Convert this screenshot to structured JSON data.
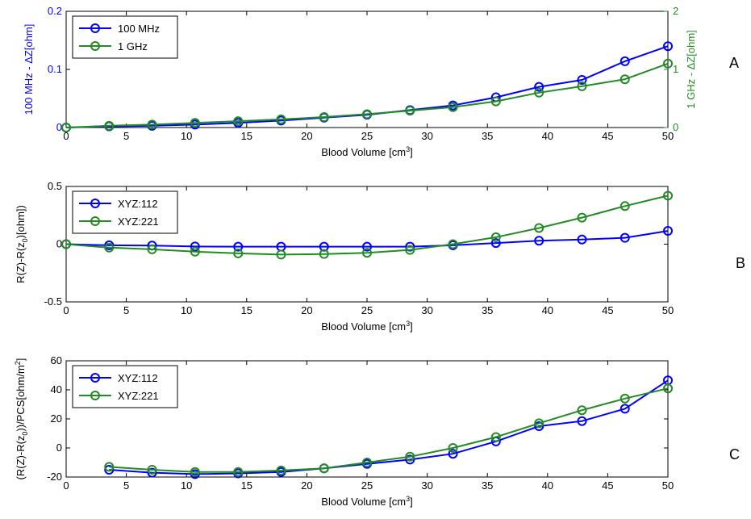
{
  "colors": {
    "blue": "#0000ff",
    "green": "#228B22",
    "axis": "#000000"
  },
  "chart_data": [
    {
      "type": "line",
      "panel_label": "A",
      "xlabel": "Blood Volume [cm",
      "xlabel_sup": "3",
      "xlabel_end": "]",
      "xlim": [
        0,
        50
      ],
      "xticks": [
        0,
        5,
        10,
        15,
        20,
        25,
        30,
        35,
        40,
        45,
        50
      ],
      "ylim": [
        0,
        0.2
      ],
      "yticks": [
        0,
        0.1,
        0.2
      ],
      "ytick_labels": [
        "0",
        "0.1",
        "0.2"
      ],
      "ylabel": "100 MHz - ΔZ[ohm]",
      "y2lim": [
        0,
        2
      ],
      "y2ticks": [
        0,
        1,
        2
      ],
      "y2tick_labels": [
        "0",
        "1",
        "2"
      ],
      "y2label": "1 GHz - ΔZ[ohm]",
      "legend_position": "top-left",
      "series": [
        {
          "name": "100 MHz",
          "color": "blue",
          "axis": "left",
          "x": [
            0,
            3.57,
            7.14,
            10.71,
            14.29,
            17.86,
            21.43,
            25,
            28.57,
            32.14,
            35.71,
            39.29,
            42.86,
            46.43,
            50
          ],
          "y": [
            0,
            0.002,
            0.003,
            0.005,
            0.008,
            0.012,
            0.017,
            0.022,
            0.03,
            0.038,
            0.052,
            0.07,
            0.082,
            0.114,
            0.14
          ]
        },
        {
          "name": "1 GHz",
          "color": "green",
          "axis": "right",
          "x": [
            0,
            3.57,
            7.14,
            10.71,
            14.29,
            17.86,
            21.43,
            25,
            28.57,
            32.14,
            35.71,
            39.29,
            42.86,
            46.43,
            50
          ],
          "y": [
            0,
            0.03,
            0.05,
            0.08,
            0.11,
            0.14,
            0.18,
            0.23,
            0.29,
            0.35,
            0.45,
            0.6,
            0.71,
            0.83,
            1.1
          ]
        }
      ]
    },
    {
      "type": "line",
      "panel_label": "B",
      "xlabel": "Blood Volume [cm",
      "xlabel_sup": "3",
      "xlabel_end": "]",
      "xlim": [
        0,
        50
      ],
      "xticks": [
        0,
        5,
        10,
        15,
        20,
        25,
        30,
        35,
        40,
        45,
        50
      ],
      "ylim": [
        -0.5,
        0.5
      ],
      "yticks": [
        -0.5,
        0,
        0.5
      ],
      "ytick_labels": [
        "-0.5",
        "0",
        "0.5"
      ],
      "ylabel": "R(Z)-R(z",
      "ylabel_sub": "0",
      "ylabel_end": ")[ohm])",
      "legend_position": "top-left",
      "series": [
        {
          "name": "XYZ:112",
          "color": "blue",
          "x": [
            0,
            3.57,
            7.14,
            10.71,
            14.29,
            17.86,
            21.43,
            25,
            28.57,
            32.14,
            35.71,
            39.29,
            42.86,
            46.43,
            50
          ],
          "y": [
            0,
            -0.01,
            -0.012,
            -0.02,
            -0.022,
            -0.022,
            -0.022,
            -0.022,
            -0.022,
            -0.01,
            0.01,
            0.03,
            0.04,
            0.055,
            0.115
          ]
        },
        {
          "name": "XYZ:221",
          "color": "green",
          "x": [
            0,
            3.57,
            7.14,
            10.71,
            14.29,
            17.86,
            21.43,
            25,
            28.57,
            32.14,
            35.71,
            39.29,
            42.86,
            46.43,
            50
          ],
          "y": [
            0,
            -0.03,
            -0.045,
            -0.065,
            -0.08,
            -0.09,
            -0.085,
            -0.075,
            -0.05,
            0,
            0.06,
            0.14,
            0.23,
            0.33,
            0.42
          ]
        }
      ]
    },
    {
      "type": "line",
      "panel_label": "C",
      "xlabel": "Blood Volume [cm",
      "xlabel_sup": "3",
      "xlabel_end": "]",
      "xlim": [
        0,
        50
      ],
      "xticks": [
        0,
        5,
        10,
        15,
        20,
        25,
        30,
        35,
        40,
        45,
        50
      ],
      "ylim": [
        -20,
        60
      ],
      "yticks": [
        -20,
        0,
        20,
        40,
        60
      ],
      "ytick_labels": [
        "-20",
        "0",
        "20",
        "40",
        "60"
      ],
      "ylabel": "(R(Z)-R(z",
      "ylabel_sub": "0",
      "ylabel_end": "))/PCS[ohm/m",
      "ylabel_sup": "2",
      "ylabel_end2": "]",
      "legend_position": "top-left",
      "series": [
        {
          "name": "XYZ:112",
          "color": "blue",
          "x": [
            3.57,
            7.14,
            10.71,
            14.29,
            17.86,
            21.43,
            25,
            28.57,
            32.14,
            35.71,
            39.29,
            42.86,
            46.43,
            50
          ],
          "y": [
            -15,
            -17,
            -18,
            -17.5,
            -16.5,
            -14,
            -11,
            -8,
            -4,
            4.5,
            15,
            18.5,
            27,
            46.5
          ]
        },
        {
          "name": "XYZ:221",
          "color": "green",
          "x": [
            3.57,
            7.14,
            10.71,
            14.29,
            17.86,
            21.43,
            25,
            28.57,
            32.14,
            35.71,
            39.29,
            42.86,
            46.43,
            50
          ],
          "y": [
            -13,
            -15,
            -16.5,
            -16.5,
            -15.5,
            -14,
            -10,
            -6,
            0,
            7.5,
            17,
            26,
            34,
            41
          ]
        }
      ]
    }
  ]
}
